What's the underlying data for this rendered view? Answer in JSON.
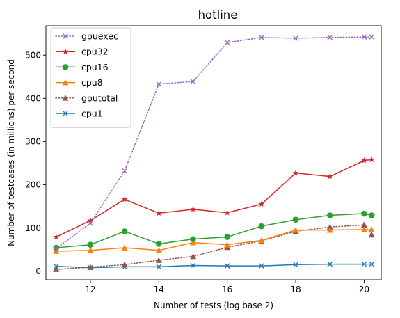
{
  "chart_data": {
    "type": "line",
    "title": "hotline",
    "xlabel": "Number of tests (log base 2)",
    "ylabel": "Number of testcases (in millions) per second",
    "xlim": [
      10.7,
      20.5
    ],
    "ylim": [
      -20,
      568
    ],
    "xticks": [
      12,
      14,
      16,
      18,
      20
    ],
    "yticks": [
      0,
      100,
      200,
      300,
      400,
      500
    ],
    "grid": false,
    "legend_position": "top-left",
    "series": [
      {
        "name": "gpuexec",
        "color": "#9467bd",
        "marker": "x",
        "linestyle": "dotted",
        "x": [
          11,
          12,
          13,
          14,
          15,
          16,
          17,
          18,
          19,
          20,
          20.22
        ],
        "y": [
          52,
          111,
          232,
          433,
          439,
          529,
          541,
          539,
          541,
          542,
          542
        ]
      },
      {
        "name": "cpu32",
        "color": "#d62728",
        "marker": "star",
        "linestyle": "solid",
        "x": [
          11,
          12,
          13,
          14,
          15,
          16,
          17,
          18,
          19,
          20,
          20.22
        ],
        "y": [
          79,
          117,
          166,
          134,
          143,
          135,
          155,
          227,
          219,
          256,
          258
        ]
      },
      {
        "name": "cpu16",
        "color": "#2ca02c",
        "marker": "circle",
        "linestyle": "solid",
        "x": [
          11,
          12,
          13,
          14,
          15,
          16,
          17,
          18,
          19,
          20,
          20.22
        ],
        "y": [
          54,
          61,
          92,
          63,
          74,
          79,
          104,
          119,
          129,
          133,
          129
        ]
      },
      {
        "name": "cpu8",
        "color": "#ff7f0e",
        "marker": "triangle",
        "linestyle": "solid",
        "x": [
          11,
          12,
          13,
          14,
          15,
          16,
          17,
          18,
          19,
          20,
          20.22
        ],
        "y": [
          46,
          48,
          54,
          48,
          66,
          61,
          71,
          95,
          95,
          96,
          96
        ]
      },
      {
        "name": "gputotal",
        "color": "#8c564b",
        "marker": "triangle",
        "linestyle": "dotted",
        "x": [
          11,
          12,
          13,
          14,
          15,
          16,
          17,
          18,
          19,
          20,
          20.22
        ],
        "y": [
          4,
          9,
          15,
          25,
          34,
          55,
          70,
          92,
          102,
          107,
          84
        ]
      },
      {
        "name": "cpu1",
        "color": "#1f77b4",
        "marker": "x",
        "linestyle": "solid",
        "x": [
          11,
          12,
          13,
          14,
          15,
          16,
          17,
          18,
          19,
          20,
          20.22
        ],
        "y": [
          11,
          8,
          10,
          10,
          13,
          12,
          12,
          15,
          16,
          16,
          16
        ]
      }
    ]
  }
}
